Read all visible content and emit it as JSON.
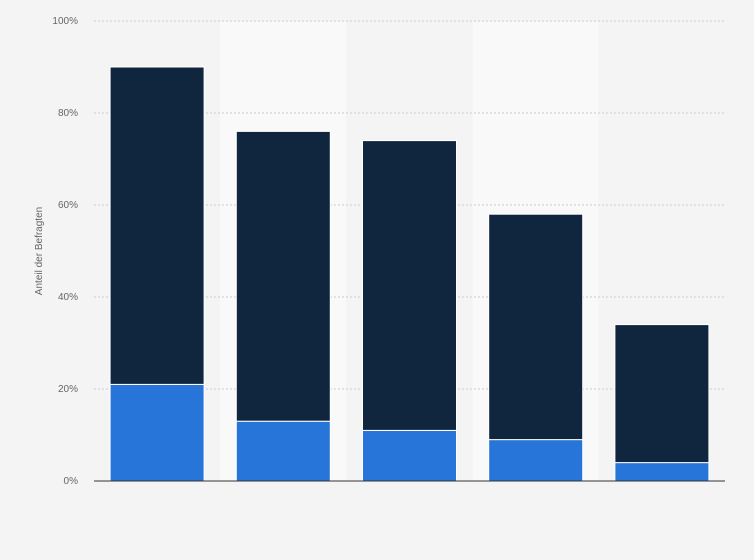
{
  "chart_data": {
    "type": "bar",
    "stacked": true,
    "categories": [
      "",
      "",
      "",
      "",
      ""
    ],
    "series": [
      {
        "values": [
          21,
          13,
          11,
          9,
          4
        ],
        "color": "#2875d9"
      },
      {
        "values": [
          69,
          63,
          63,
          49,
          30
        ],
        "color": "#10263f"
      }
    ],
    "totals": [
      90,
      76,
      74,
      58,
      34
    ],
    "ylabel": "Anteil der Befragten",
    "ylim": [
      0,
      100
    ],
    "yticks": [
      0,
      20,
      40,
      60,
      80,
      100
    ],
    "ytick_labels": [
      "0%",
      "20%",
      "40%",
      "60%",
      "80%",
      "100%"
    ],
    "grid": true,
    "legend": "none"
  },
  "colors": {
    "background": "#f4f4f4",
    "band": "#f9f9f9",
    "grid": "#cccccc",
    "axis": "#333333",
    "text": "#666666"
  }
}
